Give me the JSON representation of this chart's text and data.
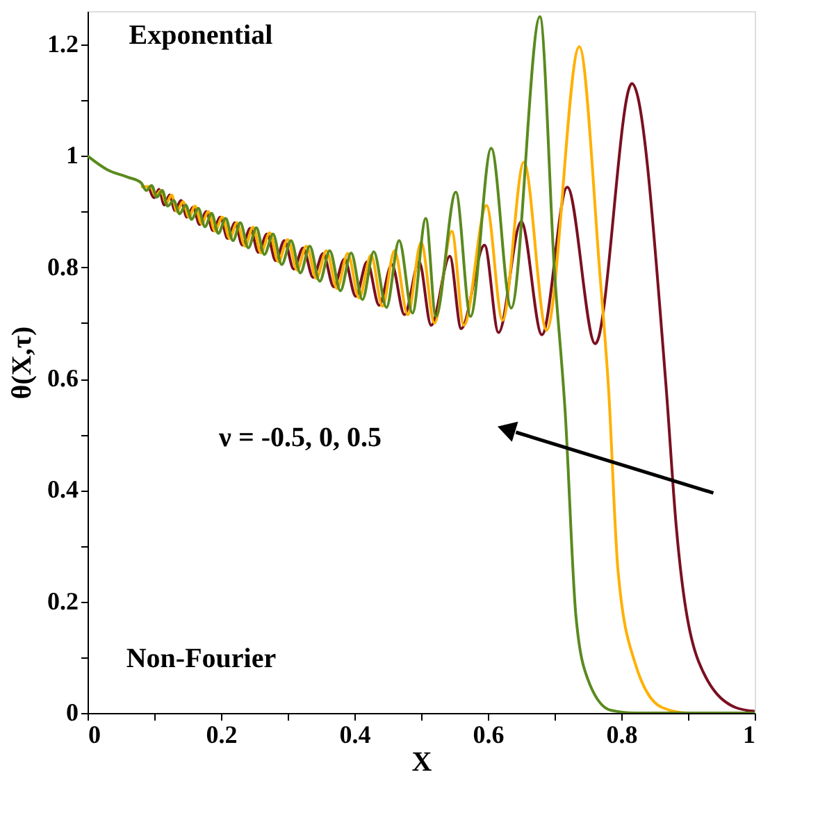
{
  "chart_data": {
    "type": "line",
    "xlabel": "X",
    "ylabel": "θ(X,τ)",
    "xlim": [
      0,
      1
    ],
    "ylim": [
      0,
      1.26
    ],
    "xticks": [
      0,
      {
        "value": 0.1,
        "label": null
      },
      0.2,
      {
        "value": 0.3,
        "label": null
      },
      0.4,
      {
        "value": 0.5,
        "label": null
      },
      0.6,
      {
        "value": 0.7,
        "label": null
      },
      0.8,
      {
        "value": 0.9,
        "label": null
      },
      1
    ],
    "yticks": [
      0,
      {
        "value": 0.1,
        "label": null
      },
      0.2,
      {
        "value": 0.3,
        "label": null
      },
      0.4,
      {
        "value": 0.5,
        "label": null
      },
      0.6,
      {
        "value": 0.7,
        "label": null
      },
      0.8,
      {
        "value": 0.9,
        "label": null
      },
      1,
      {
        "value": 1.1,
        "label": null
      },
      1.2
    ],
    "grid": false,
    "legend": false,
    "marker": "none",
    "line_style": "solid",
    "annotations": [
      "Exponential",
      "Non-Fourier",
      "ν = -0.5, 0, 0.5"
    ],
    "series": [
      {
        "color": "#7a1020",
        "x": [
          0.092,
          0.1,
          0.107,
          0.115,
          0.123,
          0.131,
          0.14,
          0.149,
          0.158,
          0.168,
          0.178,
          0.188,
          0.199,
          0.21,
          0.221,
          0.232,
          0.244,
          0.256,
          0.269,
          0.282,
          0.295,
          0.309,
          0.323,
          0.338,
          0.353,
          0.369,
          0.385,
          0.402,
          0.419,
          0.437,
          0.456,
          0.475,
          0.497,
          0.515,
          0.543,
          0.56,
          0.595,
          0.616,
          0.65,
          0.681,
          0.719,
          0.761,
          0.816,
          0.867,
          0.882,
          0.916,
          0.971,
          1.0
        ],
        "values": [
          0.945,
          0.925,
          0.94,
          0.912,
          0.93,
          0.902,
          0.92,
          0.89,
          0.908,
          0.877,
          0.9,
          0.866,
          0.89,
          0.852,
          0.88,
          0.84,
          0.87,
          0.827,
          0.86,
          0.812,
          0.848,
          0.797,
          0.835,
          0.782,
          0.825,
          0.765,
          0.815,
          0.748,
          0.81,
          0.732,
          0.805,
          0.715,
          0.81,
          0.696,
          0.82,
          0.69,
          0.84,
          0.683,
          0.882,
          0.679,
          0.944,
          0.663,
          1.13,
          0.588,
          0.34,
          0.092,
          0.01,
          0.003
        ]
      },
      {
        "color": "#ffb000",
        "x": [
          0.08,
          0.094,
          0.102,
          0.11,
          0.118,
          0.126,
          0.134,
          0.143,
          0.152,
          0.161,
          0.171,
          0.181,
          0.191,
          0.202,
          0.213,
          0.224,
          0.236,
          0.248,
          0.26,
          0.273,
          0.286,
          0.3,
          0.314,
          0.328,
          0.343,
          0.358,
          0.374,
          0.39,
          0.407,
          0.425,
          0.442,
          0.46,
          0.48,
          0.5,
          0.52,
          0.546,
          0.564,
          0.598,
          0.622,
          0.654,
          0.688,
          0.737,
          0.768,
          0.781,
          0.795,
          0.82,
          0.861,
          0.9,
          1.0
        ],
        "values": [
          0.945,
          0.945,
          0.928,
          0.938,
          0.915,
          0.93,
          0.9,
          0.918,
          0.89,
          0.91,
          0.878,
          0.9,
          0.865,
          0.89,
          0.852,
          0.88,
          0.838,
          0.872,
          0.826,
          0.862,
          0.81,
          0.85,
          0.795,
          0.838,
          0.78,
          0.83,
          0.762,
          0.825,
          0.745,
          0.822,
          0.73,
          0.83,
          0.715,
          0.845,
          0.7,
          0.865,
          0.696,
          0.911,
          0.705,
          0.989,
          0.687,
          1.196,
          0.787,
          0.58,
          0.257,
          0.092,
          0.01,
          0,
          0
        ]
      },
      {
        "color": "#5a8a1e",
        "x": [
          0,
          0.03,
          0.06,
          0.08,
          0.088,
          0.096,
          0.104,
          0.112,
          0.12,
          0.129,
          0.138,
          0.147,
          0.156,
          0.166,
          0.176,
          0.186,
          0.196,
          0.207,
          0.218,
          0.229,
          0.241,
          0.253,
          0.265,
          0.278,
          0.291,
          0.305,
          0.319,
          0.333,
          0.348,
          0.363,
          0.379,
          0.395,
          0.412,
          0.429,
          0.448,
          0.467,
          0.487,
          0.507,
          0.522,
          0.552,
          0.574,
          0.605,
          0.635,
          0.678,
          0.7,
          0.716,
          0.732,
          0.75,
          0.784,
          0.82,
          1.0
        ],
        "values": [
          1.0,
          0.975,
          0.962,
          0.952,
          0.938,
          0.947,
          0.926,
          0.938,
          0.91,
          0.92,
          0.896,
          0.912,
          0.886,
          0.906,
          0.873,
          0.897,
          0.861,
          0.888,
          0.848,
          0.88,
          0.835,
          0.871,
          0.823,
          0.86,
          0.805,
          0.848,
          0.79,
          0.838,
          0.775,
          0.83,
          0.758,
          0.826,
          0.742,
          0.828,
          0.728,
          0.848,
          0.718,
          0.888,
          0.712,
          0.935,
          0.712,
          1.014,
          0.727,
          1.25,
          0.79,
          0.538,
          0.174,
          0.06,
          0.005,
          0,
          0
        ]
      }
    ]
  }
}
